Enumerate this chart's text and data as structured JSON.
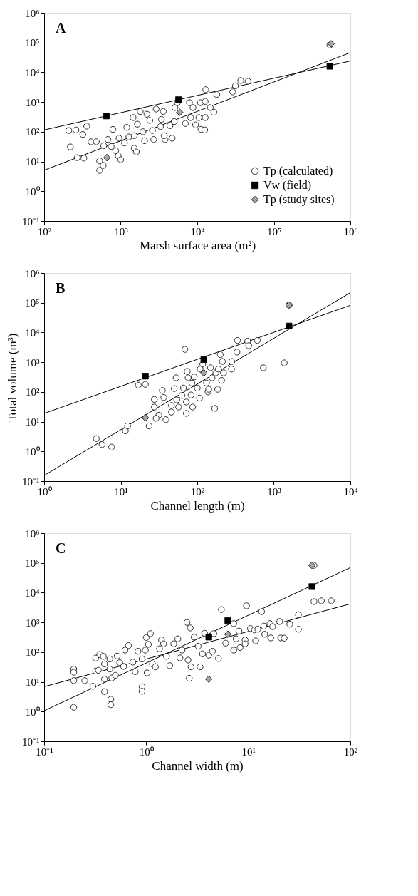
{
  "chart_data": [
    {
      "type": "scatter",
      "log": "xy",
      "xlabel": "Marsh surface area (m²)",
      "annotations": [
        "A"
      ],
      "legend": "bottom right",
      "xlim": [
        100,
        1000000
      ],
      "xticks": [
        {
          "value": 100,
          "label": "10²"
        },
        {
          "value": 1000,
          "label": "10³"
        },
        {
          "value": 10000,
          "label": "10⁴"
        },
        {
          "value": 100000,
          "label": "10⁵"
        },
        {
          "value": 1000000,
          "label": "10⁶"
        }
      ],
      "ylim": [
        0.1,
        1000000
      ],
      "yticks": [
        {
          "value": 0.1,
          "label": "10⁻¹"
        },
        {
          "value": 1,
          "label": "10⁰"
        },
        {
          "value": 10,
          "label": "10¹"
        },
        {
          "value": 100,
          "label": "10²"
        },
        {
          "value": 1000,
          "label": "10³"
        },
        {
          "value": 10000,
          "label": "10⁴"
        },
        {
          "value": 100000,
          "label": "10⁵"
        },
        {
          "value": 1000000,
          "label": "10⁶"
        }
      ],
      "series": [
        {
          "name": "Tp (calculated)",
          "color": "#ffffff",
          "marker": "circle",
          "x": [
            210,
            260,
            320,
            360,
            220,
            270,
            330,
            410,
            480,
            530,
            590,
            530,
            600,
            680,
            790,
            750,
            860,
            930,
            1000,
            950,
            1120,
            1200,
            1280,
            1450,
            1500,
            1600,
            1650,
            1500,
            1800,
            1950,
            2050,
            2200,
            2400,
            2600,
            2700,
            2900,
            3300,
            3400,
            3600,
            3800,
            3700,
            4400,
            4700,
            5000,
            5100,
            5500,
            7000,
            7900,
            8200,
            8800,
            9500,
            10500,
            11000,
            11200,
            12500,
            12700,
            12900,
            12700,
            14800,
            16500,
            18000,
            29000,
            31500,
            37000,
            46000,
            540000
          ],
          "values": [
            110,
            115,
            81,
            155,
            31,
            13.5,
            13,
            46,
            46,
            10.5,
            7.4,
            5,
            34,
            55,
            120,
            32,
            23,
            15.5,
            11.5,
            61,
            42,
            140,
            67,
            300,
            28,
            21,
            180,
            74,
            480,
            100,
            50,
            390,
            240,
            110,
            55,
            580,
            150,
            260,
            480,
            55,
            74,
            160,
            61,
            220,
            650,
            950,
            190,
            950,
            300,
            650,
            170,
            300,
            950,
            120,
            115,
            300,
            2600,
            1050,
            650,
            450,
            1800,
            2200,
            3500,
            5300,
            5000,
            82000
          ]
        },
        {
          "name": "Vw (field)",
          "color": "#000000",
          "marker": "square",
          "x": [
            650,
            5700,
            540000
          ],
          "values": [
            340,
            1200,
            16000
          ]
        },
        {
          "name": "Tp (study sites)",
          "color": "#a6a6a6",
          "marker": "diamond",
          "x": [
            660,
            5900,
            560000
          ],
          "values": [
            13.5,
            450,
            91000
          ]
        },
        {
          "type": "line",
          "color": "#000000",
          "x": [
            100,
            1000000
          ],
          "values": [
            115,
            24000
          ]
        },
        {
          "type": "line",
          "color": "#000000",
          "x": [
            100,
            1000000
          ],
          "values": [
            5.1,
            46000
          ]
        }
      ]
    },
    {
      "type": "scatter",
      "log": "xy",
      "xlabel": "Channel length (m)",
      "ylabel": "Total volume (m³)",
      "annotations": [
        "B"
      ],
      "xlim": [
        1,
        10000
      ],
      "xticks": [
        {
          "value": 1,
          "label": "10⁰"
        },
        {
          "value": 10,
          "label": "10¹"
        },
        {
          "value": 100,
          "label": "10²"
        },
        {
          "value": 1000,
          "label": "10³"
        },
        {
          "value": 10000,
          "label": "10⁴"
        }
      ],
      "ylim": [
        0.1,
        1000000
      ],
      "yticks": [
        {
          "value": 0.1,
          "label": "10⁻¹"
        },
        {
          "value": 1,
          "label": "10⁰"
        },
        {
          "value": 10,
          "label": "10¹"
        },
        {
          "value": 100,
          "label": "10²"
        },
        {
          "value": 1000,
          "label": "10³"
        },
        {
          "value": 10000,
          "label": "10⁴"
        },
        {
          "value": 100000,
          "label": "10⁵"
        },
        {
          "value": 1000000,
          "label": "10⁶"
        }
      ],
      "series": [
        {
          "color": "#ffffff",
          "marker": "circle",
          "x": [
            4.8,
            5.7,
            7.6,
            11.5,
            12.3,
            17,
            21,
            23.5,
            27.5,
            27.5,
            31.5,
            35,
            36.5,
            39,
            29,
            46,
            46,
            50,
            53,
            54,
            57,
            63,
            66,
            69,
            72,
            72,
            74,
            76,
            83,
            85,
            87,
            91,
            100,
            107,
            109,
            118,
            132,
            138,
            141,
            149,
            156,
            169,
            175,
            185,
            189,
            208,
            200,
            213,
            220,
            280,
            283,
            330,
            335,
            455,
            470,
            610,
            730,
            1370,
            1580
          ],
          "values": [
            2.7,
            1.7,
            1.4,
            4.9,
            7.2,
            170,
            180,
            7.2,
            31,
            56,
            16.5,
            112,
            65,
            11.7,
            13,
            35,
            21,
            130,
            300,
            54,
            31,
            76,
            135,
            2700,
            19,
            46,
            490,
            300,
            79,
            200,
            31,
            320,
            135,
            62,
            590,
            870,
            200,
            100,
            123,
            650,
            300,
            28,
            440,
            123,
            590,
            245,
            1800,
            1060,
            440,
            590,
            1060,
            2200,
            5400,
            5100,
            3600,
            5400,
            650,
            950,
            84000
          ]
        },
        {
          "color": "#000000",
          "marker": "square",
          "x": [
            21,
            122,
            1580
          ],
          "values": [
            340,
            1230,
            16500
          ]
        },
        {
          "color": "#a6a6a6",
          "marker": "diamond",
          "x": [
            21,
            122,
            1580
          ],
          "values": [
            13.5,
            440,
            84000
          ]
        },
        {
          "type": "line",
          "color": "#000000",
          "x": [
            1,
            10000
          ],
          "values": [
            19,
            82000
          ]
        },
        {
          "type": "line",
          "color": "#000000",
          "x": [
            1,
            10000
          ],
          "values": [
            0.155,
            220000
          ]
        }
      ]
    },
    {
      "type": "scatter",
      "log": "xy",
      "xlabel": "Channel width (m)",
      "annotations": [
        "C"
      ],
      "xlim": [
        0.1,
        100
      ],
      "xticks": [
        {
          "value": 0.1,
          "label": "10⁻¹"
        },
        {
          "value": 1,
          "label": "10⁰"
        },
        {
          "value": 10,
          "label": "10¹"
        },
        {
          "value": 100,
          "label": "10²"
        }
      ],
      "ylim": [
        0.1,
        1000000
      ],
      "yticks": [
        {
          "value": 0.1,
          "label": "10⁻¹"
        },
        {
          "value": 1,
          "label": "10⁰"
        },
        {
          "value": 10,
          "label": "10¹"
        },
        {
          "value": 100,
          "label": "10²"
        },
        {
          "value": 1000,
          "label": "10³"
        },
        {
          "value": 10000,
          "label": "10⁴"
        },
        {
          "value": 100000,
          "label": "10⁵"
        },
        {
          "value": 1000000,
          "label": "10⁶"
        }
      ],
      "series": [
        {
          "color": "#ffffff",
          "marker": "circle",
          "x": [
            0.195,
            0.195,
            0.195,
            0.195,
            0.25,
            0.3,
            0.32,
            0.35,
            0.32,
            0.34,
            0.38,
            0.39,
            0.39,
            0.39,
            0.44,
            0.44,
            0.45,
            0.45,
            0.46,
            0.5,
            0.52,
            0.55,
            0.6,
            0.62,
            0.67,
            0.74,
            0.78,
            0.83,
            0.91,
            0.91,
            0.91,
            0.98,
            1.0,
            1.02,
            1.1,
            1.05,
            1.15,
            1.23,
            1.35,
            1.41,
            1.48,
            1.58,
            1.7,
            1.86,
            2.04,
            2.14,
            2.24,
            2.51,
            2.57,
            2.7,
            2.75,
            2.64,
            2.95,
            3.23,
            3.37,
            3.56,
            3.73,
            4.1,
            4.45,
            4.6,
            5.1,
            5.45,
            6.0,
            7.2,
            7.2,
            7.6,
            8.1,
            8.3,
            9.3,
            9.3,
            9.6,
            10.5,
            11.5,
            11.8,
            12.4,
            13.5,
            14.2,
            14.5,
            16.3,
            16.6,
            17.3,
            20.3,
            20.8,
            22.5,
            25.5,
            31,
            31,
            44,
            52,
            65,
            44
          ],
          "values": [
            27,
            21,
            11,
            1.4,
            11,
            7.1,
            63,
            83,
            23,
            24.5,
            72,
            40,
            4.7,
            12.3,
            59,
            27,
            2.6,
            1.7,
            13.5,
            16.6,
            74,
            44,
            33,
            117,
            166,
            46,
            22,
            107,
            6.9,
            4.8,
            59,
            117,
            310,
            20,
            420,
            182,
            40,
            32,
            129,
            257,
            190,
            72,
            35,
            190,
            280,
            64,
            117,
            1000,
            54,
            650,
            32,
            13.2,
            320,
            158,
            32,
            87,
            430,
            79,
            107,
            420,
            61,
            2700,
            200,
            910,
            117,
            280,
            510,
            142,
            257,
            190,
            3600,
            620,
            560,
            240,
            590,
            2300,
            750,
            400,
            910,
            300,
            720,
            1070,
            300,
            295,
            870,
            590,
            1800,
            5000,
            5300,
            5300,
            83000
          ]
        },
        {
          "color": "#000000",
          "marker": "square",
          "x": [
            4.1,
            6.3,
            42
          ],
          "values": [
            320,
            1150,
            16000
          ]
        },
        {
          "color": "#a6a6a6",
          "marker": "diamond",
          "x": [
            4.1,
            6.3,
            42
          ],
          "values": [
            12.3,
            400,
            83000
          ]
        },
        {
          "type": "line",
          "color": "#000000",
          "x": [
            0.1,
            100
          ],
          "values": [
            1.07,
            70000
          ]
        },
        {
          "type": "line",
          "color": "#000000",
          "x": [
            0.1,
            100
          ],
          "values": [
            6.9,
            4200
          ]
        }
      ]
    }
  ]
}
